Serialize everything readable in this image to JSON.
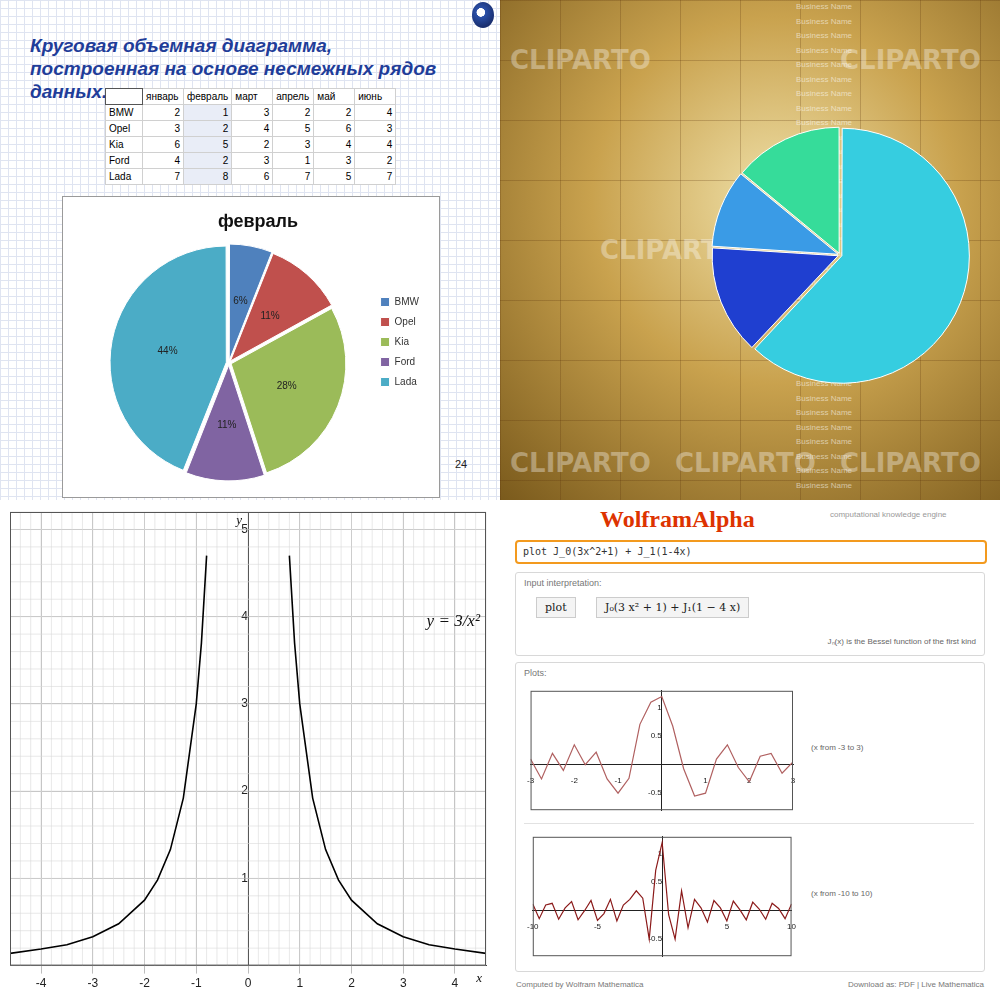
{
  "slide": {
    "title": "Круговая объемная диаграмма, построенная на основе несмежных рядов данных.",
    "table": {
      "header": [
        null,
        "январь",
        "февраль",
        "март",
        "апрель",
        "май",
        "июнь"
      ],
      "rows": [
        [
          "BMW",
          2,
          1,
          3,
          2,
          2,
          4
        ],
        [
          "Opel",
          3,
          2,
          4,
          5,
          6,
          3
        ],
        [
          "Kia",
          6,
          5,
          2,
          3,
          4,
          4
        ],
        [
          "Ford",
          4,
          2,
          3,
          1,
          3,
          2
        ],
        [
          "Lada",
          7,
          8,
          6,
          7,
          5,
          7
        ]
      ]
    },
    "page": 24
  },
  "chart_data": [
    {
      "type": "pie",
      "title": "февраль",
      "categories": [
        "BMW",
        "Opel",
        "Kia",
        "Ford",
        "Lada"
      ],
      "values": [
        6,
        11,
        28,
        11,
        44
      ],
      "value_labels": [
        "6%",
        "11%",
        "28%",
        "11%",
        "44%"
      ],
      "colors": [
        "#4f81bd",
        "#c0504d",
        "#9bbb59",
        "#8064a2",
        "#4bacc6"
      ],
      "data_labels": true,
      "legend": "right"
    },
    {
      "type": "pie",
      "values": [
        62,
        14,
        10,
        14
      ],
      "colors": [
        "#36cde0",
        "#1f3fd0",
        "#3a9be6",
        "#36dc9a"
      ],
      "annotations": [
        "CLIPARTO",
        "Business Name"
      ]
    },
    {
      "type": "line",
      "annotation": "y = 3/x²",
      "x_label": "x",
      "y_label": "y",
      "x": [
        -4.6,
        -4,
        -3.5,
        -3,
        -2.5,
        -2,
        -1.75,
        -1.5,
        -1.25,
        -1,
        -0.9,
        -0.8,
        0,
        0.8,
        0.9,
        1,
        1.25,
        1.5,
        1.75,
        2,
        2.5,
        3,
        3.5,
        4,
        4.6
      ],
      "values": [
        0.14,
        0.19,
        0.24,
        0.33,
        0.48,
        0.75,
        0.98,
        1.33,
        1.92,
        3,
        3.7,
        4.7,
        null,
        4.7,
        3.7,
        3,
        1.92,
        1.33,
        0.98,
        0.75,
        0.48,
        0.33,
        0.24,
        0.19,
        0.14
      ],
      "xlim": [
        -4.6,
        4.6
      ],
      "xticks": [
        -4,
        -3,
        -2,
        -1,
        0,
        1,
        2,
        3,
        4
      ],
      "ylim": [
        0,
        5.2
      ],
      "yticks": [
        1,
        2,
        3,
        4,
        5
      ],
      "grid": true,
      "color": "#000000"
    },
    {
      "type": "line",
      "annotation": "(x from -3 to 3)",
      "x": [
        -3,
        -2.75,
        -2.5,
        -2.25,
        -2,
        -1.75,
        -1.5,
        -1.25,
        -1,
        -0.75,
        -0.5,
        -0.25,
        0,
        0.25,
        0.5,
        0.75,
        1,
        1.25,
        1.5,
        1.75,
        2,
        2.25,
        2.5,
        2.75,
        3
      ],
      "values": [
        0.1,
        -0.25,
        0.2,
        -0.1,
        0.35,
        0.0,
        0.22,
        -0.25,
        -0.5,
        -0.24,
        0.71,
        1.1,
        1.2,
        0.68,
        -0.07,
        -0.55,
        -0.5,
        0.1,
        0.35,
        -0.05,
        -0.3,
        0.15,
        0.2,
        -0.15,
        0.05
      ],
      "xlim": [
        -3,
        3
      ],
      "xticks": [
        -3,
        -2,
        -1,
        1,
        2,
        3
      ],
      "ylim": [
        -0.8,
        1.3
      ],
      "yticks": [
        -0.5,
        0.5,
        1
      ],
      "grid": false,
      "color": "#b06060"
    },
    {
      "type": "line",
      "annotation": "(x from -10 to 10)",
      "x": [
        -10,
        -9.5,
        -9,
        -8.5,
        -8,
        -7.5,
        -7,
        -6.5,
        -6,
        -5.5,
        -5,
        -4.5,
        -4,
        -3.5,
        -3,
        -2.5,
        -2,
        -1.5,
        -1,
        -0.5,
        0,
        0.5,
        1,
        1.5,
        2,
        2.5,
        3,
        3.5,
        4,
        4.5,
        5,
        5.5,
        6,
        6.5,
        7,
        7.5,
        8,
        8.5,
        9,
        9.5,
        10
      ],
      "values": [
        0.12,
        -0.14,
        0.1,
        0.13,
        -0.15,
        0.05,
        0.16,
        -0.16,
        0.0,
        0.18,
        -0.17,
        -0.05,
        0.2,
        -0.18,
        0.1,
        0.2,
        0.35,
        0.22,
        -0.5,
        0.71,
        1.2,
        -0.07,
        -0.5,
        0.35,
        -0.3,
        0.2,
        0.05,
        -0.2,
        0.18,
        0.05,
        -0.18,
        0.17,
        0.02,
        -0.16,
        0.15,
        0.03,
        -0.15,
        0.13,
        0.04,
        -0.14,
        0.12
      ],
      "xlim": [
        -10,
        10
      ],
      "xticks": [
        -10,
        -5,
        5,
        10
      ],
      "ylim": [
        -0.8,
        1.3
      ],
      "yticks": [
        -0.5,
        0.5,
        1
      ],
      "grid": false,
      "color": "#8b1a1a"
    }
  ],
  "wolfram": {
    "logo": "WolframAlpha",
    "tagline": "computational knowledge engine",
    "input": "plot J_0(3x^2+1) + J_1(1-4x)",
    "input_interpretation_label": "Input interpretation:",
    "interpretation": [
      "plot",
      "J₀(3 x² + 1) + J₁(1 − 4 x)"
    ],
    "note": "Jₙ(x) is the Bessel function of the first kind",
    "plots_label": "Plots:",
    "footer_left": "Computed by Wolfram Mathematica",
    "footer_right": "Download as: PDF | Live Mathematica"
  }
}
